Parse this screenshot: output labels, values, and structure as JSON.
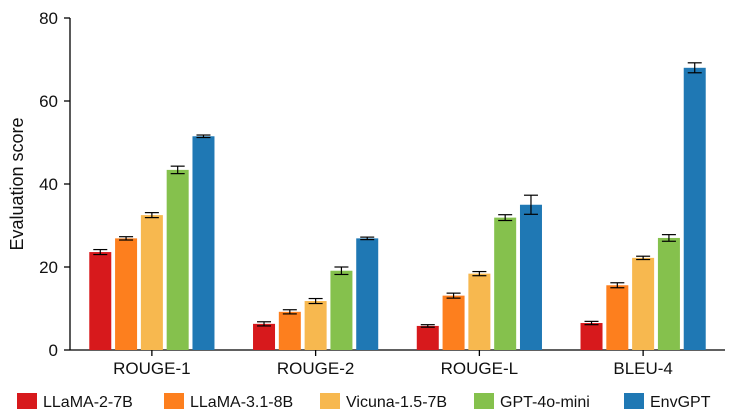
{
  "chart_data": {
    "type": "bar",
    "title": "",
    "xlabel": "",
    "ylabel": "Evaluation score",
    "ylim": [
      0,
      80
    ],
    "yticks": [
      0,
      20,
      40,
      60,
      80
    ],
    "grid": false,
    "legend_position": "bottom",
    "categories": [
      "ROUGE-1",
      "ROUGE-2",
      "ROUGE-L",
      "BLEU-4"
    ],
    "series": [
      {
        "name": "LLaMA-2-7B",
        "color": "#d7191c",
        "values": [
          23.6,
          6.3,
          5.8,
          6.5
        ],
        "errors": [
          0.6,
          0.5,
          0.3,
          0.4
        ]
      },
      {
        "name": "LLaMA-3.1-8B",
        "color": "#fd7f1e",
        "values": [
          26.9,
          9.2,
          13.1,
          15.6
        ],
        "errors": [
          0.4,
          0.5,
          0.6,
          0.6
        ]
      },
      {
        "name": "Vicuna-1.5-7B",
        "color": "#f7b84f",
        "values": [
          32.5,
          11.8,
          18.4,
          22.2
        ],
        "errors": [
          0.6,
          0.6,
          0.5,
          0.4
        ]
      },
      {
        "name": "GPT-4o-mini",
        "color": "#85c14d",
        "values": [
          43.4,
          19.1,
          31.9,
          27.0
        ],
        "errors": [
          0.9,
          0.9,
          0.7,
          0.8
        ]
      },
      {
        "name": "EnvGPT",
        "color": "#1f78b4",
        "values": [
          51.5,
          26.9,
          35.0,
          68.0
        ],
        "errors": [
          0.3,
          0.3,
          2.3,
          1.2
        ]
      }
    ]
  }
}
